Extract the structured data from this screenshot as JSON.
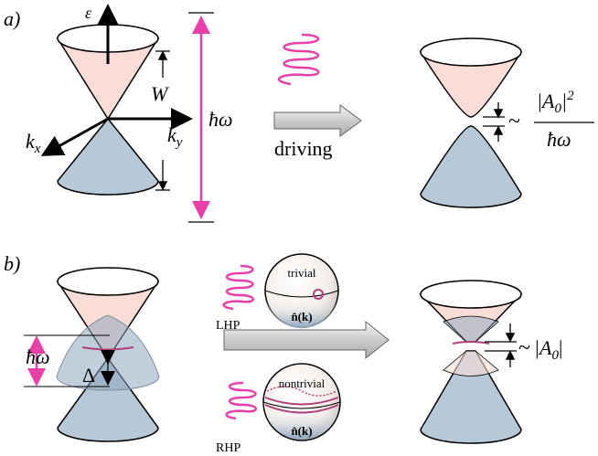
{
  "panel_a": {
    "tag": "a)",
    "energy_axis": "ε",
    "bandwidth": "W",
    "frequency": "ħω",
    "kx": {
      "base": "k",
      "sub": "x"
    },
    "ky": {
      "base": "k",
      "sub": "y"
    },
    "arrow_label": "driving",
    "gap": {
      "prefix": "~",
      "open": "|A",
      "sub": "0",
      "close": "|",
      "exp": "2",
      "denominator": "ħω"
    }
  },
  "panel_b": {
    "tag": "b)",
    "frequency": "ħω",
    "gap": "Δ",
    "lhp": {
      "sphere_label": "trivial",
      "polarization": "LHP",
      "vector": "n̂(k)"
    },
    "rhp": {
      "sphere_label": "nontrivial",
      "polarization": "RHP",
      "vector": "n̂(k)"
    },
    "result": {
      "prefix": "~",
      "open": "|A",
      "sub": "0",
      "close": "|"
    }
  }
}
